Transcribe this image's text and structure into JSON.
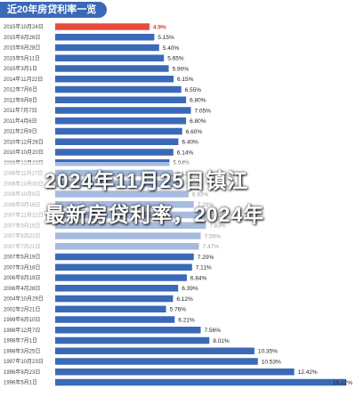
{
  "header": {
    "title": "近20年房贷利率一览"
  },
  "overlay": {
    "line1": "2024年11月25日镇江",
    "line2": "最新房贷利率，2024年"
  },
  "colors": {
    "bar": "#3a69b7",
    "highlight": "#e74c3c",
    "header_bg": "#3a69b7"
  },
  "chart_data": {
    "type": "bar",
    "orientation": "horizontal",
    "title": "近20年房贷利率一览",
    "xlabel": "",
    "ylabel": "",
    "xlim": [
      0,
      15.5
    ],
    "grid": false,
    "legend": "none",
    "categories": [
      "2015年10月24日",
      "2015年8月26日",
      "2015年6月28日",
      "2015年5月11日",
      "2015年3月1日",
      "2014年11月22日",
      "2012年7月6日",
      "2012年6月8日",
      "2011年7月7日",
      "2011年4月6日",
      "2011年2月9日",
      "2010年12月26日",
      "2010年10月20日",
      "2008年12月23日",
      "2008年11月27日",
      "2008年10月30日",
      "2008年10月9日",
      "2008年9月16日",
      "2007年12月21日",
      "2007年9月15日",
      "2007年8月22日",
      "2007年7月21日",
      "2007年5月19日",
      "2007年3月18日",
      "2006年8月19日",
      "2006年4月28日",
      "2004年10月29日",
      "2002年2月21日",
      "1999年6月10日",
      "1998年12月7日",
      "1998年7月1日",
      "1998年3月25日",
      "1997年10月23日",
      "1996年8月23日",
      "1996年5月1日"
    ],
    "values": [
      4.9,
      5.15,
      5.4,
      5.65,
      5.9,
      6.15,
      6.55,
      6.8,
      7.05,
      6.8,
      6.6,
      6.4,
      6.14,
      5.94,
      6.12,
      6.66,
      6.93,
      7.2,
      7.83,
      7.83,
      7.56,
      7.47,
      7.2,
      7.11,
      6.84,
      6.39,
      6.12,
      5.76,
      6.21,
      7.56,
      8.01,
      10.35,
      10.53,
      12.42,
      15.12
    ],
    "labels": [
      "4.9%",
      "5.15%",
      "5.40%",
      "5.65%",
      "5.90%",
      "6.15%",
      "6.55%",
      "6.80%",
      "7.05%",
      "6.80%",
      "6.60%",
      "6.40%",
      "6.14%",
      "5.94%",
      "6.12%",
      "6.66%",
      "6.93%",
      "7.20%",
      "7.83%",
      "7.83%",
      "7.56%",
      "7.47%",
      "7.20%",
      "7.11%",
      "6.84%",
      "6.39%",
      "6.12%",
      "5.76%",
      "6.21%",
      "7.56%",
      "8.01%",
      "10.35%",
      "10.53%",
      "12.42%",
      "15.12%"
    ],
    "highlight_index": 0
  }
}
